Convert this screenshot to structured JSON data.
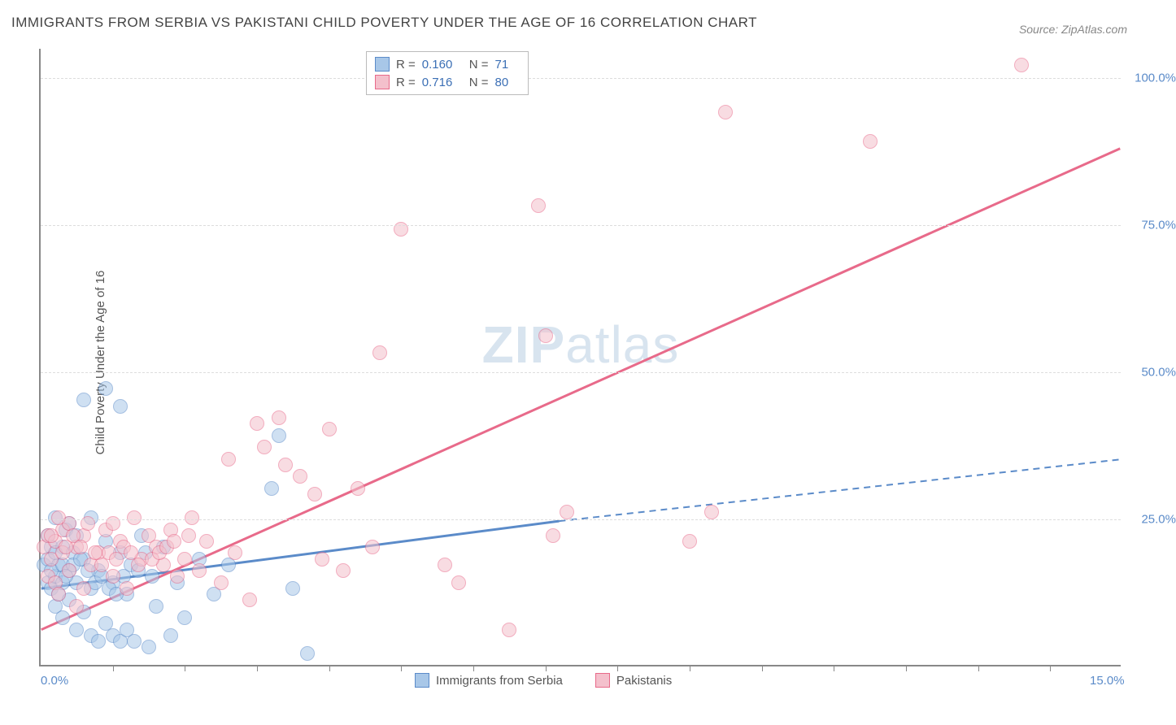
{
  "title": "IMMIGRANTS FROM SERBIA VS PAKISTANI CHILD POVERTY UNDER THE AGE OF 16 CORRELATION CHART",
  "source_label": "Source:",
  "source_value": "ZipAtlas.com",
  "ylabel": "Child Poverty Under the Age of 16",
  "watermark": {
    "bold": "ZIP",
    "rest": "atlas"
  },
  "chart": {
    "type": "scatter",
    "xlim": [
      0,
      15
    ],
    "ylim": [
      0,
      105
    ],
    "xticks": [
      {
        "v": 0,
        "label": "0.0%"
      },
      {
        "v": 15,
        "label": "15.0%"
      }
    ],
    "xminor": [
      1,
      2,
      3,
      4,
      5,
      6,
      7,
      8,
      9,
      10,
      11,
      12,
      13,
      14
    ],
    "yticks": [
      {
        "v": 25,
        "label": "25.0%"
      },
      {
        "v": 50,
        "label": "50.0%"
      },
      {
        "v": 75,
        "label": "75.0%"
      },
      {
        "v": 100,
        "label": "100.0%"
      }
    ],
    "background_color": "#ffffff",
    "grid_color": "#dddddd",
    "marker_radius": 9,
    "marker_opacity": 0.55,
    "series": [
      {
        "name": "Immigrants from Serbia",
        "color_fill": "#a8c7e8",
        "color_stroke": "#5b8bc9",
        "r_label": "R =",
        "r_value": "0.160",
        "n_label": "N =",
        "n_value": "71",
        "trend": {
          "solid_from": [
            0,
            13
          ],
          "solid_to": [
            7.2,
            24.5
          ],
          "dash_to": [
            15,
            35
          ],
          "stroke_width": 3,
          "dash_pattern": "8,6"
        },
        "points": [
          [
            0.05,
            17
          ],
          [
            0.1,
            14
          ],
          [
            0.1,
            18
          ],
          [
            0.1,
            22
          ],
          [
            0.15,
            13
          ],
          [
            0.15,
            20
          ],
          [
            0.2,
            10
          ],
          [
            0.2,
            15
          ],
          [
            0.2,
            25
          ],
          [
            0.25,
            12
          ],
          [
            0.25,
            17
          ],
          [
            0.3,
            8
          ],
          [
            0.3,
            14
          ],
          [
            0.3,
            20
          ],
          [
            0.35,
            23
          ],
          [
            0.4,
            11
          ],
          [
            0.4,
            16
          ],
          [
            0.45,
            19
          ],
          [
            0.5,
            6
          ],
          [
            0.5,
            14
          ],
          [
            0.6,
            9
          ],
          [
            0.6,
            18
          ],
          [
            0.7,
            5
          ],
          [
            0.7,
            13
          ],
          [
            0.8,
            4
          ],
          [
            0.8,
            16
          ],
          [
            0.9,
            7
          ],
          [
            0.9,
            21
          ],
          [
            1.0,
            5
          ],
          [
            1.0,
            14
          ],
          [
            1.1,
            4
          ],
          [
            1.1,
            19
          ],
          [
            1.2,
            6
          ],
          [
            1.2,
            12
          ],
          [
            1.3,
            4
          ],
          [
            1.4,
            22
          ],
          [
            1.5,
            3
          ],
          [
            1.6,
            10
          ],
          [
            1.7,
            20
          ],
          [
            1.8,
            5
          ],
          [
            1.9,
            14
          ],
          [
            2.0,
            8
          ],
          [
            2.2,
            18
          ],
          [
            2.4,
            12
          ],
          [
            2.6,
            17
          ],
          [
            0.6,
            45
          ],
          [
            0.9,
            47
          ],
          [
            1.1,
            44
          ],
          [
            3.3,
            39
          ],
          [
            3.2,
            30
          ],
          [
            3.5,
            13
          ],
          [
            3.7,
            2
          ],
          [
            0.4,
            24
          ],
          [
            0.5,
            22
          ],
          [
            0.7,
            25
          ],
          [
            0.2,
            19
          ],
          [
            0.15,
            16
          ],
          [
            0.3,
            17
          ],
          [
            0.35,
            15
          ],
          [
            0.45,
            17
          ],
          [
            0.55,
            18
          ],
          [
            0.65,
            16
          ],
          [
            0.75,
            14
          ],
          [
            0.85,
            15
          ],
          [
            0.95,
            13
          ],
          [
            1.05,
            12
          ],
          [
            1.15,
            15
          ],
          [
            1.25,
            17
          ],
          [
            1.35,
            16
          ],
          [
            1.45,
            19
          ],
          [
            1.55,
            15
          ]
        ]
      },
      {
        "name": "Pakistanis",
        "color_fill": "#f4c0cc",
        "color_stroke": "#e86a8a",
        "r_label": "R =",
        "r_value": "0.716",
        "n_label": "N =",
        "n_value": "80",
        "trend": {
          "solid_from": [
            0,
            6
          ],
          "solid_to": [
            15,
            88
          ],
          "dash_to": null,
          "stroke_width": 3,
          "dash_pattern": null
        },
        "points": [
          [
            0.05,
            20
          ],
          [
            0.1,
            15
          ],
          [
            0.1,
            22
          ],
          [
            0.15,
            18
          ],
          [
            0.2,
            14
          ],
          [
            0.2,
            21
          ],
          [
            0.25,
            12
          ],
          [
            0.3,
            19
          ],
          [
            0.3,
            23
          ],
          [
            0.4,
            16
          ],
          [
            0.4,
            24
          ],
          [
            0.5,
            10
          ],
          [
            0.5,
            20
          ],
          [
            0.6,
            13
          ],
          [
            0.6,
            22
          ],
          [
            0.7,
            17
          ],
          [
            0.8,
            19
          ],
          [
            0.9,
            23
          ],
          [
            1.0,
            15
          ],
          [
            1.0,
            24
          ],
          [
            1.1,
            21
          ],
          [
            1.2,
            13
          ],
          [
            1.3,
            25
          ],
          [
            1.4,
            18
          ],
          [
            1.5,
            22
          ],
          [
            1.6,
            20
          ],
          [
            1.7,
            17
          ],
          [
            1.8,
            23
          ],
          [
            1.9,
            15
          ],
          [
            2.0,
            18
          ],
          [
            2.1,
            25
          ],
          [
            2.2,
            16
          ],
          [
            2.3,
            21
          ],
          [
            2.5,
            14
          ],
          [
            2.6,
            35
          ],
          [
            2.7,
            19
          ],
          [
            2.9,
            11
          ],
          [
            3.0,
            41
          ],
          [
            3.1,
            37
          ],
          [
            3.3,
            42
          ],
          [
            3.4,
            34
          ],
          [
            3.6,
            32
          ],
          [
            3.8,
            29
          ],
          [
            3.9,
            18
          ],
          [
            4.0,
            40
          ],
          [
            4.2,
            16
          ],
          [
            4.4,
            30
          ],
          [
            4.6,
            20
          ],
          [
            4.7,
            53
          ],
          [
            5.0,
            74
          ],
          [
            5.6,
            17
          ],
          [
            5.8,
            14
          ],
          [
            6.5,
            6
          ],
          [
            6.9,
            78
          ],
          [
            7.0,
            56
          ],
          [
            7.1,
            22
          ],
          [
            7.3,
            26
          ],
          [
            9.0,
            21
          ],
          [
            9.3,
            26
          ],
          [
            9.5,
            94
          ],
          [
            11.5,
            89
          ],
          [
            13.6,
            102
          ],
          [
            0.15,
            22
          ],
          [
            0.25,
            25
          ],
          [
            0.35,
            20
          ],
          [
            0.45,
            22
          ],
          [
            0.55,
            20
          ],
          [
            0.65,
            24
          ],
          [
            0.75,
            19
          ],
          [
            0.85,
            17
          ],
          [
            0.95,
            19
          ],
          [
            1.05,
            18
          ],
          [
            1.15,
            20
          ],
          [
            1.25,
            19
          ],
          [
            1.35,
            17
          ],
          [
            1.55,
            18
          ],
          [
            1.65,
            19
          ],
          [
            1.75,
            20
          ],
          [
            1.85,
            21
          ],
          [
            2.05,
            22
          ]
        ]
      }
    ]
  }
}
